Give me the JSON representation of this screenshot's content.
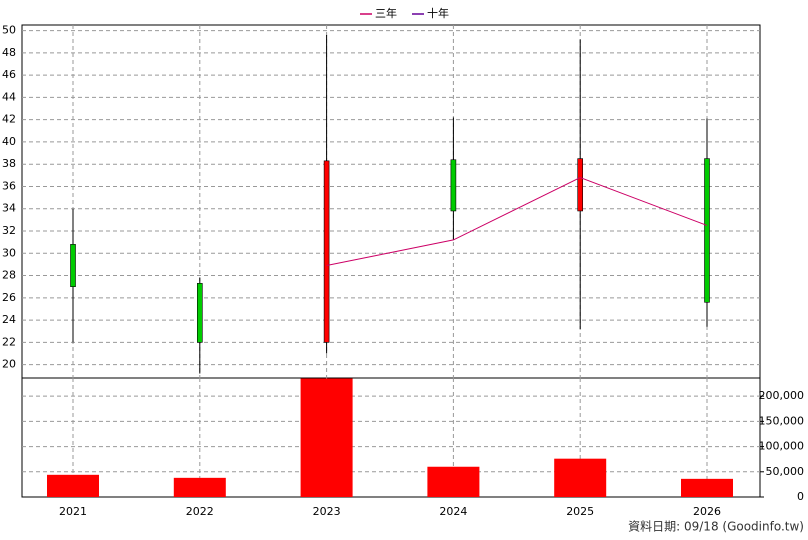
{
  "chart_data": [
    {
      "type": "candlestick",
      "categories": [
        "2021",
        "2022",
        "2023",
        "2024",
        "2025",
        "2026"
      ],
      "open": [
        30.8,
        27.3,
        22,
        38.4,
        33.8,
        38.5
      ],
      "high": [
        34,
        27.8,
        49.6,
        42.2,
        49.2,
        42.1
      ],
      "low": [
        22,
        19.2,
        21,
        31.2,
        23.2,
        23.4
      ],
      "close": [
        27,
        22,
        38.3,
        33.8,
        38.5,
        25.6
      ],
      "up_color": "#ff0000",
      "down_color": "#00cc00",
      "series": [
        {
          "name": "三年",
          "color": "#cc0066",
          "values": [
            null,
            null,
            28.9,
            31.2,
            36.8,
            32.5
          ]
        },
        {
          "name": "十年",
          "color": "#660099",
          "values": [
            null,
            null,
            null,
            null,
            null,
            null
          ]
        }
      ],
      "ylim": [
        18.8,
        50.5
      ],
      "yticks": [
        20,
        22,
        24,
        26,
        28,
        30,
        32,
        34,
        36,
        38,
        40,
        42,
        44,
        46,
        48,
        50
      ],
      "grid": true,
      "legend": "top"
    },
    {
      "type": "bar",
      "categories": [
        "2021",
        "2022",
        "2023",
        "2024",
        "2025",
        "2026"
      ],
      "values": [
        44000,
        38000,
        235000,
        60000,
        76000,
        36000
      ],
      "color": "#ff0000",
      "ylim": [
        0,
        236000
      ],
      "yticks": [
        0,
        {
          "value": 50000,
          "label": "50,000"
        },
        {
          "value": 100000,
          "label": "100,000"
        },
        {
          "value": 150000,
          "label": "150,000"
        },
        {
          "value": 200000,
          "label": "200,000"
        }
      ],
      "grid": true,
      "footnote": "資料日期: 09/18 (Goodinfo.tw)"
    }
  ]
}
